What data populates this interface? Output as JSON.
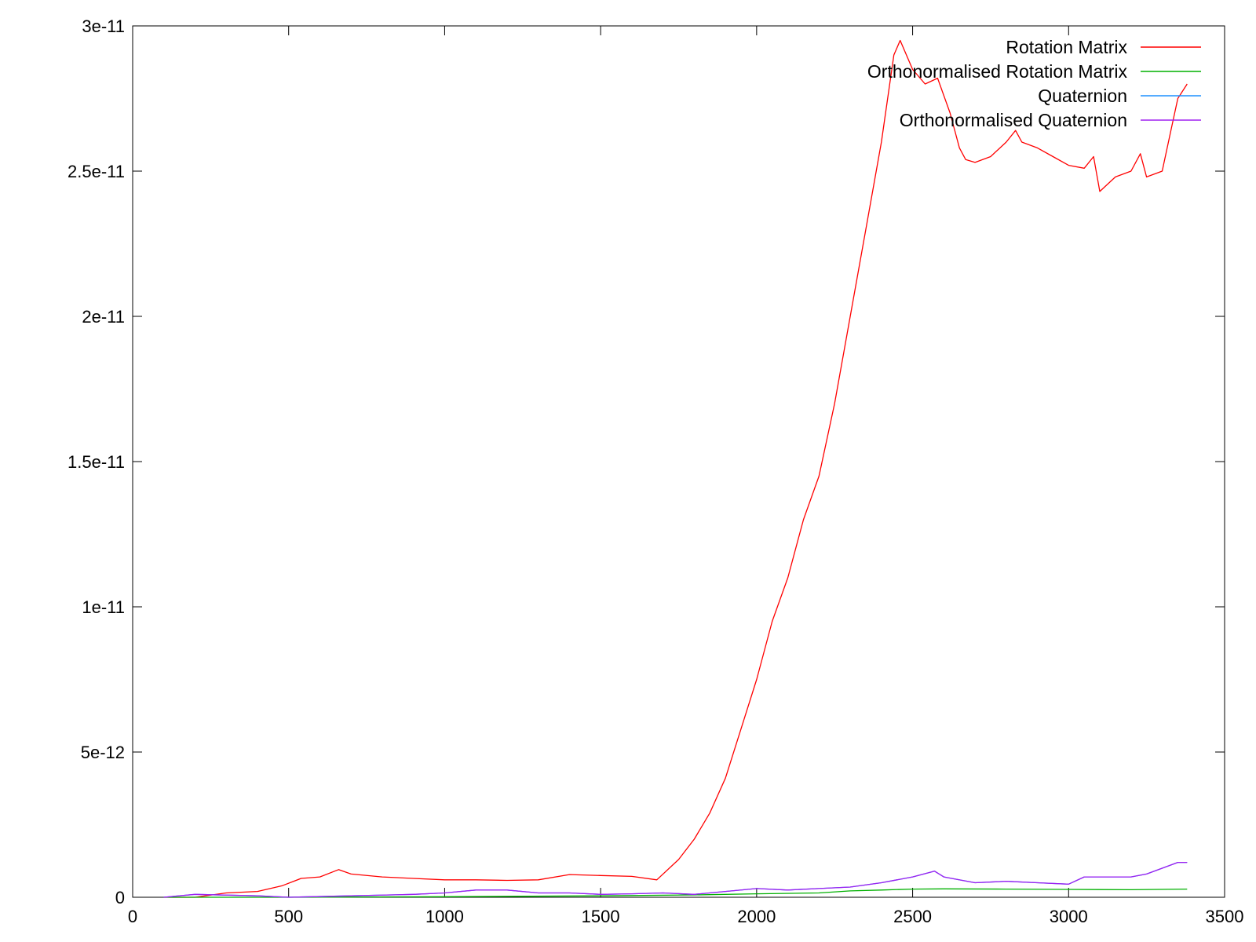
{
  "chart_data": {
    "type": "line",
    "title": "",
    "xlabel": "",
    "ylabel": "",
    "xlim": [
      0,
      3500
    ],
    "ylim": [
      0,
      3e-11
    ],
    "x_ticks": [
      {
        "value": 0,
        "label": "0"
      },
      {
        "value": 500,
        "label": "500"
      },
      {
        "value": 1000,
        "label": "1000"
      },
      {
        "value": 1500,
        "label": "1500"
      },
      {
        "value": 2000,
        "label": "2000"
      },
      {
        "value": 2500,
        "label": "2500"
      },
      {
        "value": 3000,
        "label": "3000"
      },
      {
        "value": 3500,
        "label": "3500"
      }
    ],
    "y_ticks": [
      {
        "value": 0,
        "label": "0"
      },
      {
        "value": 5e-12,
        "label": "5e-12"
      },
      {
        "value": 1e-11,
        "label": "1e-11"
      },
      {
        "value": 1.5e-11,
        "label": "1.5e-11"
      },
      {
        "value": 2e-11,
        "label": "2e-11"
      },
      {
        "value": 2.5e-11,
        "label": "2.5e-11"
      },
      {
        "value": 3e-11,
        "label": "3e-11"
      }
    ],
    "grid": false,
    "legend_position": "top-right",
    "series": [
      {
        "name": "Rotation Matrix",
        "color": "#ff0000",
        "x": [
          100,
          200,
          300,
          400,
          480,
          540,
          600,
          660,
          700,
          800,
          900,
          1000,
          1100,
          1200,
          1300,
          1400,
          1500,
          1600,
          1680,
          1750,
          1800,
          1850,
          1900,
          1950,
          2000,
          2050,
          2100,
          2150,
          2200,
          2250,
          2300,
          2350,
          2400,
          2440,
          2460,
          2500,
          2540,
          2580,
          2620,
          2650,
          2670,
          2700,
          2750,
          2800,
          2830,
          2850,
          2900,
          2950,
          3000,
          3050,
          3080,
          3100,
          3150,
          3200,
          3230,
          3250,
          3300,
          3330,
          3350,
          3380
        ],
        "y": [
          0,
          0,
          1.5e-13,
          2e-13,
          4e-13,
          6.5e-13,
          7e-13,
          9.5e-13,
          8e-13,
          7e-13,
          6.5e-13,
          6e-13,
          6e-13,
          5.8e-13,
          6e-13,
          7.8e-13,
          7.5e-13,
          7.2e-13,
          6e-13,
          1.3e-12,
          2e-12,
          2.9e-12,
          4.1e-12,
          5.8e-12,
          7.5e-12,
          9.5e-12,
          1.1e-11,
          1.3e-11,
          1.45e-11,
          1.7e-11,
          2e-11,
          2.3e-11,
          2.6e-11,
          2.9e-11,
          2.95e-11,
          2.85e-11,
          2.8e-11,
          2.82e-11,
          2.7e-11,
          2.58e-11,
          2.54e-11,
          2.53e-11,
          2.55e-11,
          2.6e-11,
          2.64e-11,
          2.6e-11,
          2.58e-11,
          2.55e-11,
          2.52e-11,
          2.51e-11,
          2.55e-11,
          2.43e-11,
          2.48e-11,
          2.5e-11,
          2.56e-11,
          2.48e-11,
          2.5e-11,
          2.65e-11,
          2.75e-11,
          2.8e-11
        ]
      },
      {
        "name": "Orthonormalised Rotation Matrix",
        "color": "#00b000",
        "x": [
          100,
          500,
          1000,
          1500,
          1800,
          2000,
          2200,
          2300,
          2400,
          2500,
          2600,
          2800,
          3000,
          3200,
          3380
        ],
        "y": [
          0,
          0,
          2e-14,
          5e-14,
          8e-14,
          1.2e-13,
          1.5e-13,
          2.2e-13,
          2.5e-13,
          2.8e-13,
          2.9e-13,
          2.8e-13,
          2.7e-13,
          2.6e-13,
          2.8e-13
        ]
      },
      {
        "name": "Quaternion",
        "color": "#1e90ff",
        "x": [
          100,
          200,
          400,
          500,
          700,
          900,
          1000,
          1100,
          1200,
          1300,
          1400,
          1500,
          1600,
          1700,
          1800,
          1900,
          2000,
          2100,
          2200,
          2300,
          2400,
          2450,
          2500,
          2570,
          2600,
          2700,
          2800,
          2900,
          3000,
          3050,
          3100,
          3200,
          3250,
          3300,
          3350,
          3380
        ],
        "y": [
          0,
          1e-13,
          5e-14,
          0,
          5e-14,
          1e-13,
          1.5e-13,
          2.5e-13,
          2.5e-13,
          1.5e-13,
          1.5e-13,
          1e-13,
          1.2e-13,
          1.5e-13,
          1e-13,
          2e-13,
          3e-13,
          2.5e-13,
          3e-13,
          3.5e-13,
          5e-13,
          6e-13,
          7e-13,
          9e-13,
          7e-13,
          5e-13,
          5.5e-13,
          5e-13,
          4.5e-13,
          7e-13,
          7e-13,
          7e-13,
          8e-13,
          1e-12,
          1.2e-12,
          1.2e-12
        ]
      },
      {
        "name": "Orthonormalised Quaternion",
        "color": "#a020f0",
        "x": [
          100,
          200,
          400,
          500,
          700,
          900,
          1000,
          1100,
          1200,
          1300,
          1400,
          1500,
          1600,
          1700,
          1800,
          1900,
          2000,
          2100,
          2200,
          2300,
          2400,
          2450,
          2500,
          2570,
          2600,
          2700,
          2800,
          2900,
          3000,
          3050,
          3100,
          3200,
          3250,
          3300,
          3350,
          3380
        ],
        "y": [
          0,
          1e-13,
          5e-14,
          0,
          5e-14,
          1e-13,
          1.5e-13,
          2.5e-13,
          2.5e-13,
          1.5e-13,
          1.5e-13,
          1e-13,
          1.2e-13,
          1.5e-13,
          1e-13,
          2e-13,
          3e-13,
          2.5e-13,
          3e-13,
          3.5e-13,
          5e-13,
          6e-13,
          7e-13,
          9e-13,
          7e-13,
          5e-13,
          5.5e-13,
          5e-13,
          4.5e-13,
          7e-13,
          7e-13,
          7e-13,
          8e-13,
          1e-12,
          1.2e-12,
          1.2e-12
        ]
      }
    ]
  }
}
